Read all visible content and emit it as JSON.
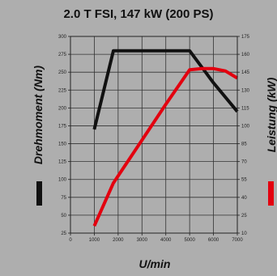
{
  "chart_data": {
    "type": "line",
    "title": "2.0 T FSI, 147 kW (200 PS)",
    "xlabel": "U/min",
    "ylabel_left": "Drehmoment (Nm)",
    "ylabel_right": "Leistung (kW)",
    "xlim": [
      0,
      7000
    ],
    "ylim_left": [
      25,
      300
    ],
    "ylim_right": [
      10,
      175
    ],
    "grid": true,
    "x_ticks": [
      0,
      1000,
      2000,
      3000,
      4000,
      5000,
      6000,
      7000
    ],
    "y_left_ticks": [
      25,
      50,
      75,
      100,
      125,
      150,
      175,
      200,
      225,
      250,
      275,
      300
    ],
    "y_right_ticks": [
      10,
      25,
      40,
      55,
      70,
      85,
      100,
      115,
      130,
      145,
      160,
      175
    ],
    "series": [
      {
        "name": "Drehmoment (Nm)",
        "axis": "left",
        "color": "#111111",
        "x": [
          1000,
          1800,
          5000,
          6000,
          7000
        ],
        "y": [
          170,
          280,
          280,
          235,
          195
        ]
      },
      {
        "name": "Leistung (kW)",
        "axis": "right",
        "color": "#e3000f",
        "x": [
          1000,
          1800,
          3000,
          4000,
          5000,
          5500,
          6000,
          6500,
          7000
        ],
        "y": [
          16,
          52,
          88,
          118,
          147,
          148,
          148,
          146,
          140
        ]
      }
    ]
  }
}
